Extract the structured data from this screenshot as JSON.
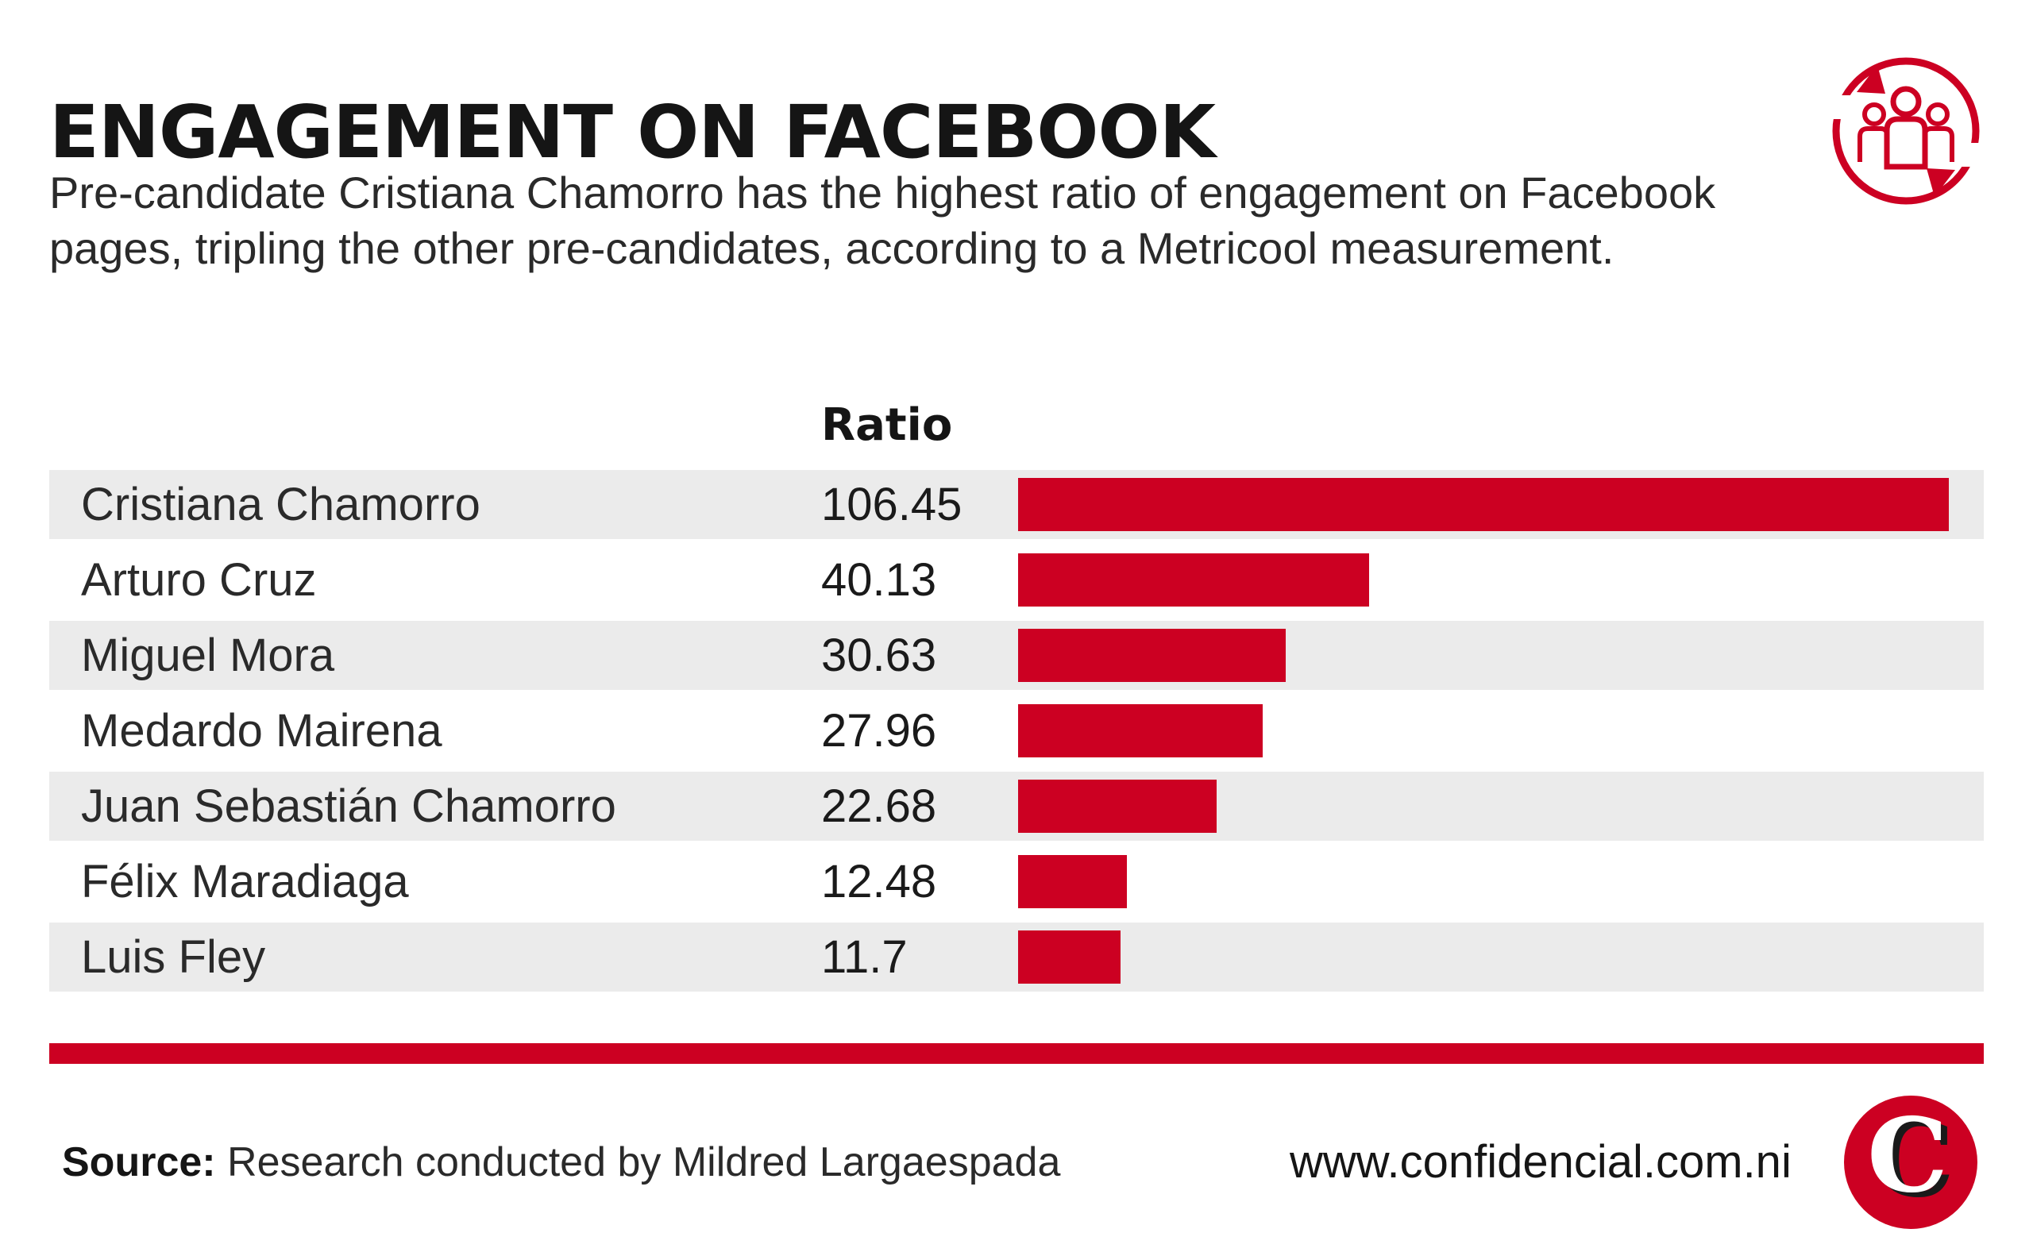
{
  "header": {
    "title": "ENGAGEMENT ON FACEBOOK",
    "subtitle": "Pre-candidate Cristiana Chamorro has the highest ratio of engagement on Facebook pages, tripling the other pre-candidates, according to a Metricool measurement."
  },
  "icons": {
    "top": "audience-engagement-icon",
    "logo": "confidencial-logo"
  },
  "colors": {
    "accent": "#cc0022",
    "row_shade": "#ebebeb",
    "text": "#1c1c1c"
  },
  "chart_data": {
    "type": "bar",
    "orientation": "horizontal",
    "value_header": "Ratio",
    "categories": [
      "Cristiana Chamorro",
      "Arturo Cruz",
      "Miguel Mora",
      "Medardo Mairena",
      "Juan Sebastián Chamorro",
      "Félix Maradiaga",
      "Luis Fley"
    ],
    "values": [
      106.45,
      40.13,
      30.63,
      27.96,
      22.68,
      12.48,
      11.7
    ],
    "value_labels": [
      "106.45",
      "40.13",
      "30.63",
      "27.96",
      "22.68",
      "12.48",
      "11.7"
    ],
    "xlim": [
      0,
      106.45
    ],
    "grid": false,
    "bar_color": "#cc0022"
  },
  "footer": {
    "source_label": "Source:",
    "source_text": " Research conducted by Mildred Largaespada",
    "website": "www.confidencial.com.ni"
  }
}
